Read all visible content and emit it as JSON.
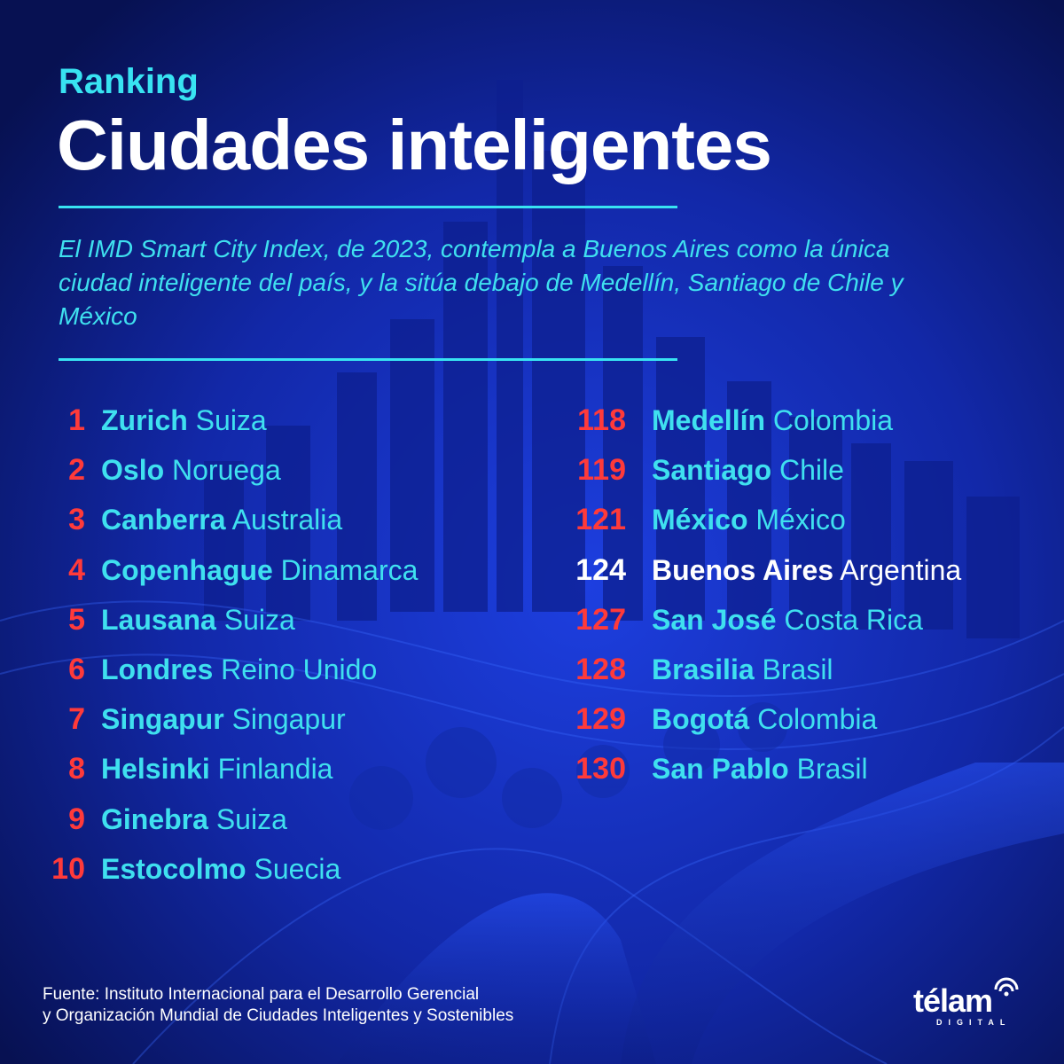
{
  "header": {
    "kicker": "Ranking",
    "title": "Ciudades inteligentes"
  },
  "subtitle": "El IMD Smart City Index, de 2023, contempla a Buenos Aires como la única ciudad inteligente del país, y la sitúa debajo de Medellín, Santiago de Chile y México",
  "ranking_top": [
    {
      "rank": "1",
      "city": "Zurich",
      "country": "Suiza"
    },
    {
      "rank": "2",
      "city": "Oslo",
      "country": "Noruega"
    },
    {
      "rank": "3",
      "city": "Canberra",
      "country": "Australia"
    },
    {
      "rank": "4",
      "city": "Copenhague",
      "country": "Dinamarca"
    },
    {
      "rank": "5",
      "city": "Lausana",
      "country": "Suiza"
    },
    {
      "rank": "6",
      "city": "Londres",
      "country": "Reino Unido"
    },
    {
      "rank": "7",
      "city": "Singapur",
      "country": "Singapur"
    },
    {
      "rank": "8",
      "city": "Helsinki",
      "country": "Finlandia"
    },
    {
      "rank": "9",
      "city": "Ginebra",
      "country": "Suiza"
    },
    {
      "rank": "10",
      "city": "Estocolmo",
      "country": "Suecia"
    }
  ],
  "ranking_latam": [
    {
      "rank": "118",
      "city": "Medellín",
      "country": "Colombia"
    },
    {
      "rank": "119",
      "city": "Santiago",
      "country": "Chile"
    },
    {
      "rank": "121",
      "city": "México",
      "country": "México"
    },
    {
      "rank": "124",
      "city": "Buenos Aires",
      "country": "Argentina",
      "highlight": true
    },
    {
      "rank": "127",
      "city": "San José",
      "country": "Costa Rica"
    },
    {
      "rank": "128",
      "city": "Brasilia",
      "country": "Brasil"
    },
    {
      "rank": "129",
      "city": "Bogotá",
      "country": "Colombia"
    },
    {
      "rank": "130",
      "city": "San Pablo",
      "country": "Brasil"
    }
  ],
  "footer": {
    "source_line1": "Fuente: Instituto Internacional para el Desarrollo Gerencial",
    "source_line2": "y Organización Mundial de Ciudades Inteligentes y Sostenibles",
    "logo_word": "télam",
    "logo_sub": "DIGITAL"
  },
  "colors": {
    "background": "#0b1a72",
    "accent_cyan": "#38e3f2",
    "rank_red": "#ff3a3a",
    "highlight": "#ffffff"
  }
}
